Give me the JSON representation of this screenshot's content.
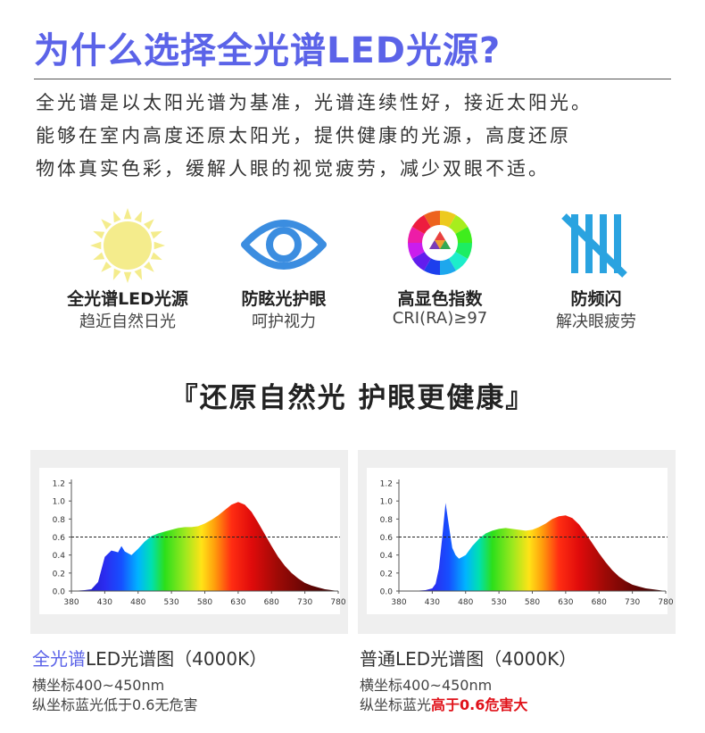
{
  "header": {
    "title": "为什么选择全光谱LED光源?",
    "intro_lines": [
      "全光谱是以太阳光谱为基准，光谱连续性好，接近太阳光。",
      "能够在室内高度还原太阳光，提供健康的光源，高度还原",
      "物体真实色彩，缓解人眼的视觉疲劳，减少双眼不适。"
    ]
  },
  "features": [
    {
      "icon": "sun-icon",
      "name": "全光谱LED光源",
      "desc": "趋近自然日光"
    },
    {
      "icon": "eye-icon",
      "name": "防眩光护眼",
      "desc": "呵护视力"
    },
    {
      "icon": "color-wheel-icon",
      "name": "高显色指数",
      "desc": "CRI(RA)≥97"
    },
    {
      "icon": "flicker-icon",
      "name": "防频闪",
      "desc": "解决眼疲劳"
    }
  ],
  "slogan": "『还原自然光 护眼更健康』",
  "colors": {
    "title": "#5b63e8",
    "warning": "#e0121a",
    "sun": "#f4ec8c",
    "icon_blue": "#3b8de0",
    "flicker_blue": "#2aa3e0"
  },
  "chart_data": [
    {
      "type": "area",
      "x": [
        380,
        400,
        410,
        420,
        430,
        440,
        450,
        455,
        460,
        470,
        480,
        490,
        500,
        510,
        520,
        530,
        540,
        550,
        560,
        570,
        580,
        590,
        600,
        610,
        620,
        630,
        640,
        650,
        660,
        670,
        680,
        690,
        700,
        710,
        720,
        730,
        740,
        750,
        760,
        770,
        780
      ],
      "y": [
        0,
        0.01,
        0.02,
        0.1,
        0.38,
        0.45,
        0.43,
        0.5,
        0.44,
        0.4,
        0.47,
        0.55,
        0.61,
        0.64,
        0.66,
        0.68,
        0.7,
        0.71,
        0.71,
        0.72,
        0.75,
        0.79,
        0.84,
        0.9,
        0.96,
        0.99,
        0.96,
        0.88,
        0.76,
        0.63,
        0.5,
        0.38,
        0.28,
        0.2,
        0.14,
        0.09,
        0.06,
        0.04,
        0.02,
        0.01,
        0
      ],
      "xticks": [
        380,
        430,
        480,
        530,
        580,
        630,
        680,
        730,
        780
      ],
      "ylim": [
        0,
        1.2
      ],
      "yticks": [
        "0.0",
        "0.2",
        "0.4",
        "0.6",
        "0.8",
        "1.0",
        "1.2"
      ],
      "xticks_labels": [
        "380",
        "430",
        "480",
        "530",
        "580",
        "630",
        "680",
        "730",
        "780"
      ],
      "reference_line": 0.6,
      "grid": false,
      "caption_highlight": "全光谱",
      "caption_rest": "LED光谱图（4000K）",
      "note_line1": "横坐标400~450nm",
      "note_line2_a": "纵坐标蓝光低于0.6无危害",
      "note_line2_b": ""
    },
    {
      "type": "area",
      "x": [
        380,
        400,
        420,
        430,
        435,
        440,
        445,
        450,
        455,
        460,
        465,
        470,
        480,
        490,
        500,
        510,
        520,
        530,
        540,
        550,
        560,
        570,
        580,
        590,
        600,
        610,
        620,
        630,
        640,
        650,
        660,
        670,
        680,
        690,
        700,
        710,
        720,
        730,
        740,
        750,
        760,
        770,
        780
      ],
      "y": [
        0,
        0,
        0.01,
        0.03,
        0.08,
        0.25,
        0.6,
        0.98,
        0.72,
        0.48,
        0.4,
        0.36,
        0.4,
        0.5,
        0.58,
        0.64,
        0.67,
        0.69,
        0.7,
        0.69,
        0.68,
        0.67,
        0.68,
        0.71,
        0.75,
        0.8,
        0.83,
        0.84,
        0.81,
        0.74,
        0.64,
        0.53,
        0.42,
        0.32,
        0.23,
        0.16,
        0.11,
        0.07,
        0.05,
        0.03,
        0.02,
        0.01,
        0
      ],
      "xticks": [
        380,
        430,
        480,
        530,
        580,
        630,
        680,
        730,
        780
      ],
      "ylim": [
        0,
        1.2
      ],
      "yticks": [
        "0.0",
        "0.2",
        "0.4",
        "0.6",
        "0.8",
        "1.0",
        "1.2"
      ],
      "xticks_labels": [
        "380",
        "430",
        "480",
        "530",
        "580",
        "630",
        "680",
        "730",
        "780"
      ],
      "reference_line": 0.6,
      "grid": false,
      "caption_highlight": "",
      "caption_rest": "普通LED光谱图（4000K）",
      "note_line1": "横坐标400~450nm",
      "note_line2_a": "纵坐标蓝光",
      "note_line2_b": "高于0.6危害大"
    }
  ]
}
